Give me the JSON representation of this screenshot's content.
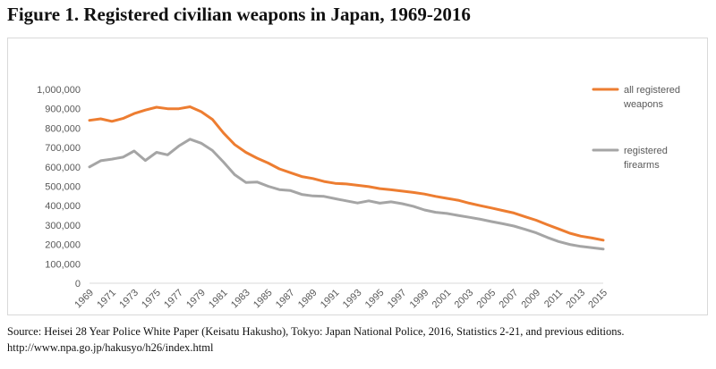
{
  "figure": {
    "title": "Figure 1. Registered civilian weapons in Japan, 1969-2016"
  },
  "source": {
    "line1": "Source: Heisei 28 Year Police White Paper (Keisatu Hakusho), Tokyo: Japan National Police, 2016, Statistics 2-21, and previous editions.",
    "line2": "http://www.npa.go.jp/hakusyo/h26/index.html"
  },
  "chart_data": {
    "type": "line",
    "title": "",
    "xlabel": "",
    "ylabel": "",
    "ylim": [
      0,
      1000000
    ],
    "yticks": [
      0,
      100000,
      200000,
      300000,
      400000,
      500000,
      600000,
      700000,
      800000,
      900000,
      1000000
    ],
    "ytick_labels": [
      "0",
      "100,000",
      "200,000",
      "300,000",
      "400,000",
      "500,000",
      "600,000",
      "700,000",
      "800,000",
      "900,000",
      "1,000,000"
    ],
    "x": [
      1969,
      1970,
      1971,
      1972,
      1973,
      1974,
      1975,
      1976,
      1977,
      1978,
      1979,
      1980,
      1981,
      1982,
      1983,
      1984,
      1985,
      1986,
      1987,
      1988,
      1989,
      1990,
      1991,
      1992,
      1993,
      1994,
      1995,
      1996,
      1997,
      1998,
      1999,
      2000,
      2001,
      2002,
      2003,
      2004,
      2005,
      2006,
      2007,
      2008,
      2009,
      2010,
      2011,
      2012,
      2013,
      2014,
      2015
    ],
    "xtick_labels": [
      "1969",
      "1971",
      "1973",
      "1975",
      "1977",
      "1979",
      "1981",
      "1983",
      "1985",
      "1987",
      "1989",
      "1991",
      "1993",
      "1995",
      "1997",
      "1999",
      "2001",
      "2003",
      "2005",
      "2007",
      "2009",
      "2011",
      "2013",
      "2015"
    ],
    "grid": false,
    "legend": "right",
    "series": [
      {
        "name": "all registered weapons",
        "color": "#ed7d31",
        "values": [
          840000,
          848000,
          835000,
          850000,
          875000,
          893000,
          908000,
          900000,
          900000,
          910000,
          885000,
          845000,
          775000,
          715000,
          675000,
          645000,
          620000,
          590000,
          570000,
          550000,
          540000,
          525000,
          515000,
          512000,
          505000,
          498000,
          488000,
          482000,
          475000,
          468000,
          460000,
          448000,
          438000,
          428000,
          413000,
          400000,
          388000,
          375000,
          362000,
          343000,
          325000,
          302000,
          280000,
          258000,
          243000,
          233000,
          222000
        ]
      },
      {
        "name": "registered firearms",
        "color": "#a5a5a5",
        "values": [
          600000,
          632000,
          640000,
          650000,
          682000,
          633000,
          675000,
          662000,
          708000,
          743000,
          722000,
          685000,
          625000,
          560000,
          520000,
          522000,
          500000,
          483000,
          478000,
          458000,
          450000,
          448000,
          436000,
          425000,
          414000,
          425000,
          413000,
          420000,
          410000,
          397000,
          378000,
          366000,
          360000,
          350000,
          340000,
          330000,
          318000,
          307000,
          295000,
          278000,
          260000,
          236000,
          215000,
          200000,
          190000,
          183000,
          176000
        ]
      }
    ]
  }
}
